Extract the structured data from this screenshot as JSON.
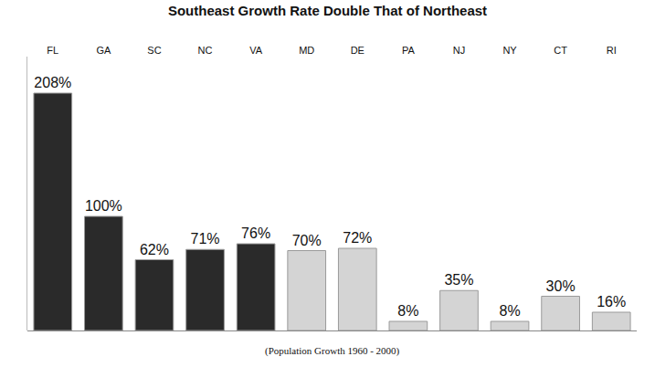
{
  "chart_data": {
    "type": "bar",
    "title": "Southeast Growth Rate Double That of Northeast",
    "x_label": "(Population Growth 1960 - 2000)",
    "categories": [
      "FL",
      "GA",
      "SC",
      "NC",
      "VA",
      "MD",
      "DE",
      "PA",
      "NJ",
      "NY",
      "CT",
      "RI"
    ],
    "values": [
      208,
      100,
      62,
      71,
      76,
      70,
      72,
      8,
      35,
      8,
      30,
      16
    ],
    "value_labels": [
      "208%",
      "100%",
      "62%",
      "71%",
      "76%",
      "70%",
      "72%",
      "8%",
      "35%",
      "8%",
      "30%",
      "16%"
    ],
    "colors": [
      "#2a2a2a",
      "#2a2a2a",
      "#2a2a2a",
      "#2a2a2a",
      "#2a2a2a",
      "#d4d4d4",
      "#d4d4d4",
      "#d4d4d4",
      "#d4d4d4",
      "#d4d4d4",
      "#d4d4d4",
      "#d4d4d4"
    ],
    "ylim": [
      0,
      240
    ],
    "grid": false,
    "data_labels": true,
    "tick_labels": "x"
  }
}
